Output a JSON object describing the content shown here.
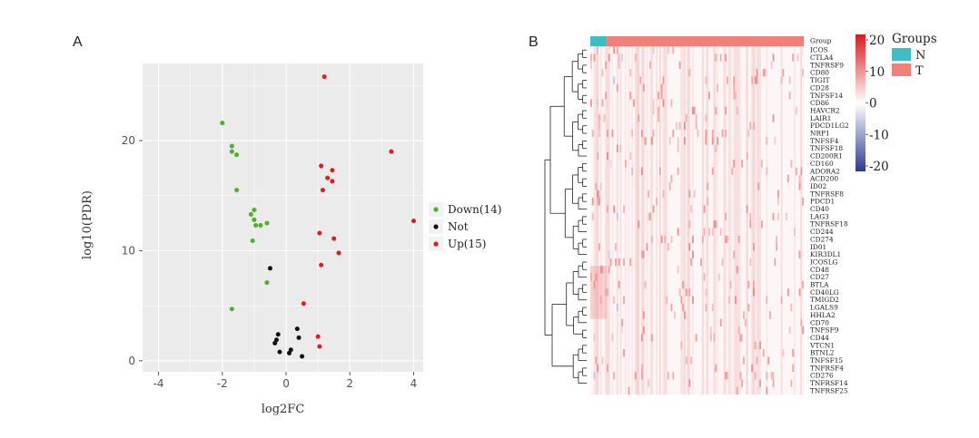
{
  "panel_a_label": "A",
  "panel_b_label": "B",
  "chart_data": [
    {
      "type": "scatter",
      "xlabel": "log2FC",
      "ylabel": "log10(PDR)",
      "xlim": [
        -4.5,
        4.3
      ],
      "ylim": [
        -1,
        27
      ],
      "xticks": [
        -4,
        -2,
        0,
        2,
        4
      ],
      "yticks": [
        0,
        10,
        20
      ],
      "grid": true,
      "legend_position": "right",
      "series": [
        {
          "name": "Down(14)",
          "color": "#4daf2a",
          "points": [
            [
              -2.0,
              21.6
            ],
            [
              -1.7,
              19.5
            ],
            [
              -1.7,
              19.0
            ],
            [
              -1.55,
              18.7
            ],
            [
              -1.55,
              15.5
            ],
            [
              -1.0,
              13.7
            ],
            [
              -1.1,
              13.3
            ],
            [
              -1.0,
              12.8
            ],
            [
              -0.95,
              12.3
            ],
            [
              -0.8,
              12.3
            ],
            [
              -0.6,
              12.5
            ],
            [
              -1.05,
              10.9
            ],
            [
              -0.6,
              7.1
            ],
            [
              -1.7,
              4.7
            ]
          ]
        },
        {
          "name": "Not",
          "color": "#111111",
          "points": [
            [
              -0.5,
              8.4
            ],
            [
              -0.25,
              2.4
            ],
            [
              -0.3,
              1.9
            ],
            [
              -0.35,
              1.6
            ],
            [
              -0.2,
              0.8
            ],
            [
              0.1,
              0.7
            ],
            [
              0.15,
              1.0
            ],
            [
              0.35,
              2.9
            ],
            [
              0.4,
              2.1
            ],
            [
              0.5,
              0.4
            ]
          ]
        },
        {
          "name": "Up(15)",
          "color": "#e41a1c",
          "points": [
            [
              1.2,
              25.8
            ],
            [
              3.3,
              19.0
            ],
            [
              1.1,
              17.7
            ],
            [
              1.45,
              17.3
            ],
            [
              1.3,
              16.6
            ],
            [
              1.45,
              16.3
            ],
            [
              1.15,
              15.5
            ],
            [
              4.0,
              12.7
            ],
            [
              1.05,
              11.6
            ],
            [
              1.5,
              11.1
            ],
            [
              1.65,
              9.8
            ],
            [
              1.1,
              8.7
            ],
            [
              0.55,
              5.2
            ],
            [
              1.0,
              2.2
            ],
            [
              1.05,
              1.3
            ]
          ]
        }
      ]
    },
    {
      "type": "heatmap",
      "rows": [
        "Group",
        "ICOS",
        "CTLA4",
        "TNFRSF9",
        "CD80",
        "TIGIT",
        "CD28",
        "TNFSF14",
        "CD86",
        "HAVCR2",
        "LAIR1",
        "PDCD1LG2",
        "NRP1",
        "TNFSF4",
        "TNFSF18",
        "CD200R1",
        "CD160",
        "ADORA2",
        "ACD200",
        "ID02",
        "TNFRSF8",
        "PDCD1",
        "CD40",
        "LAG3",
        "TNFRSF18",
        "CD244",
        "CD274",
        "ID01",
        "KIR3DL1",
        "ICOSLG",
        "CD48",
        "CD27",
        "BTLA",
        "CD40LG",
        "TMIGD2",
        "LGALS9",
        "HHLA2",
        "CD70",
        "TNFSF9",
        "CD44",
        "VTCN1",
        "BTNL2",
        "TNFSF15",
        "TNFRSF4",
        "CD276",
        "TNFRSF14",
        "TNFRSF25"
      ],
      "colorbar": {
        "ticks": [
          "20",
          "10",
          "0",
          "-10",
          "-20"
        ],
        "low": "#2b3a91",
        "mid": "#ffffff",
        "high": "#d7191c"
      },
      "groups_legend": {
        "title": "Groups",
        "items": [
          {
            "label": "N",
            "color": "#3fbcc4"
          },
          {
            "label": "T",
            "color": "#f08178"
          }
        ]
      }
    }
  ]
}
